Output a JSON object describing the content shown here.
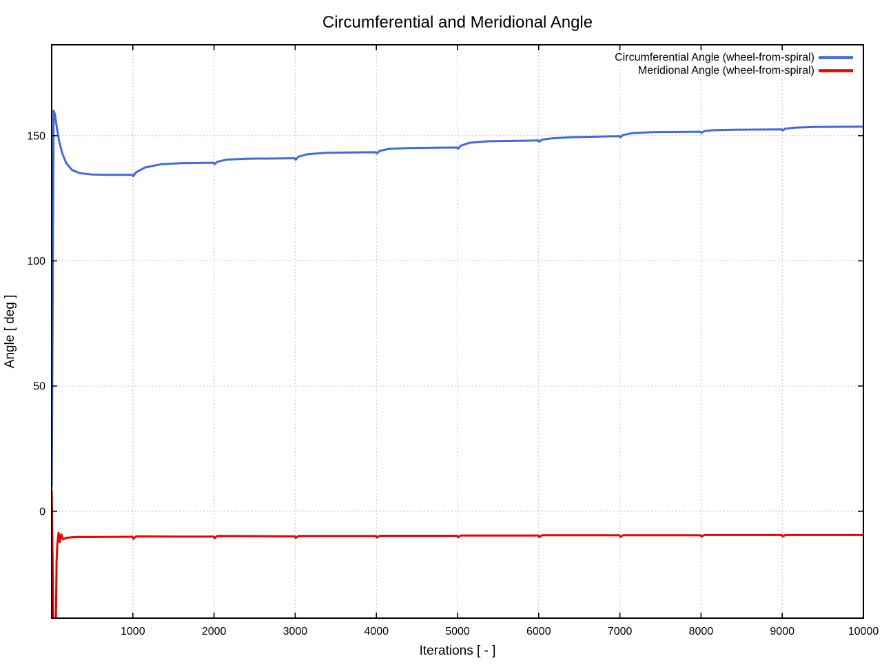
{
  "chart_data": {
    "type": "line",
    "title": "Circumferential and Meridional Angle",
    "xlabel": "Iterations [ - ]",
    "ylabel": "Angle [ deg ]",
    "xlim": [
      0,
      10000
    ],
    "ylim": [
      -42.7,
      186.3
    ],
    "x_ticks": [
      1000,
      2000,
      3000,
      4000,
      5000,
      6000,
      7000,
      8000,
      9000,
      10000
    ],
    "y_ticks": [
      0,
      50,
      100,
      150
    ],
    "grid": true,
    "legend_position": "top-right",
    "background_color": "#ffffff",
    "axis_color": "#000000",
    "grid_color": "#bdbdbd",
    "series": [
      {
        "name": "Circumferential Angle (wheel-from-spiral)",
        "color": "#4169e1",
        "width": 3,
        "points": [
          [
            1,
            10
          ],
          [
            25,
            160
          ],
          [
            40,
            158.5
          ],
          [
            60,
            154
          ],
          [
            90,
            148
          ],
          [
            130,
            143
          ],
          [
            180,
            139
          ],
          [
            250,
            136.3
          ],
          [
            350,
            135
          ],
          [
            500,
            134.5
          ],
          [
            700,
            134.4
          ],
          [
            995,
            134.4
          ],
          [
            1005,
            133.8
          ],
          [
            1040,
            135.4
          ],
          [
            1150,
            137.3
          ],
          [
            1350,
            138.6
          ],
          [
            1600,
            139.0
          ],
          [
            1995,
            139.2
          ],
          [
            2005,
            138.6
          ],
          [
            2040,
            139.6
          ],
          [
            2150,
            140.4
          ],
          [
            2400,
            140.8
          ],
          [
            2995,
            141.0
          ],
          [
            3005,
            140.4
          ],
          [
            3040,
            141.6
          ],
          [
            3150,
            142.6
          ],
          [
            3400,
            143.2
          ],
          [
            3995,
            143.4
          ],
          [
            4005,
            142.9
          ],
          [
            4040,
            143.9
          ],
          [
            4150,
            144.7
          ],
          [
            4400,
            145.1
          ],
          [
            4995,
            145.3
          ],
          [
            5005,
            144.7
          ],
          [
            5040,
            146.0
          ],
          [
            5150,
            147.2
          ],
          [
            5400,
            147.8
          ],
          [
            5995,
            148.1
          ],
          [
            6005,
            147.6
          ],
          [
            6040,
            148.4
          ],
          [
            6150,
            148.9
          ],
          [
            6400,
            149.4
          ],
          [
            6995,
            149.8
          ],
          [
            7005,
            149.3
          ],
          [
            7040,
            150.3
          ],
          [
            7150,
            151.0
          ],
          [
            7400,
            151.4
          ],
          [
            7995,
            151.6
          ],
          [
            8005,
            151.1
          ],
          [
            8040,
            151.8
          ],
          [
            8150,
            152.2
          ],
          [
            8400,
            152.4
          ],
          [
            8995,
            152.5
          ],
          [
            9005,
            152.1
          ],
          [
            9040,
            152.8
          ],
          [
            9150,
            153.2
          ],
          [
            9400,
            153.5
          ],
          [
            10000,
            153.6
          ]
        ]
      },
      {
        "name": "Meridional Angle (wheel-from-spiral)",
        "color": "#ee0000",
        "width": 3,
        "points": [
          [
            1,
            8
          ],
          [
            22,
            -50
          ],
          [
            50,
            -50
          ],
          [
            60,
            -20
          ],
          [
            70,
            -13.2
          ],
          [
            85,
            -8.6
          ],
          [
            100,
            -12.3
          ],
          [
            118,
            -9.2
          ],
          [
            140,
            -11.2
          ],
          [
            180,
            -10.6
          ],
          [
            300,
            -10.3
          ],
          [
            600,
            -10.3
          ],
          [
            995,
            -10.2
          ],
          [
            1005,
            -11.0
          ],
          [
            1040,
            -10.0
          ],
          [
            1500,
            -10.1
          ],
          [
            1995,
            -10.1
          ],
          [
            2005,
            -10.8
          ],
          [
            2040,
            -9.9
          ],
          [
            2995,
            -10.0
          ],
          [
            3005,
            -10.7
          ],
          [
            3040,
            -9.9
          ],
          [
            3995,
            -9.9
          ],
          [
            4005,
            -10.5
          ],
          [
            4040,
            -9.8
          ],
          [
            4995,
            -9.8
          ],
          [
            5005,
            -10.4
          ],
          [
            5040,
            -9.7
          ],
          [
            5995,
            -9.7
          ],
          [
            6005,
            -10.3
          ],
          [
            6040,
            -9.6
          ],
          [
            6995,
            -9.6
          ],
          [
            7005,
            -10.2
          ],
          [
            7040,
            -9.6
          ],
          [
            7995,
            -9.6
          ],
          [
            8005,
            -10.1
          ],
          [
            8040,
            -9.5
          ],
          [
            8995,
            -9.5
          ],
          [
            9005,
            -10.0
          ],
          [
            9040,
            -9.5
          ],
          [
            10000,
            -9.5
          ]
        ]
      }
    ]
  }
}
